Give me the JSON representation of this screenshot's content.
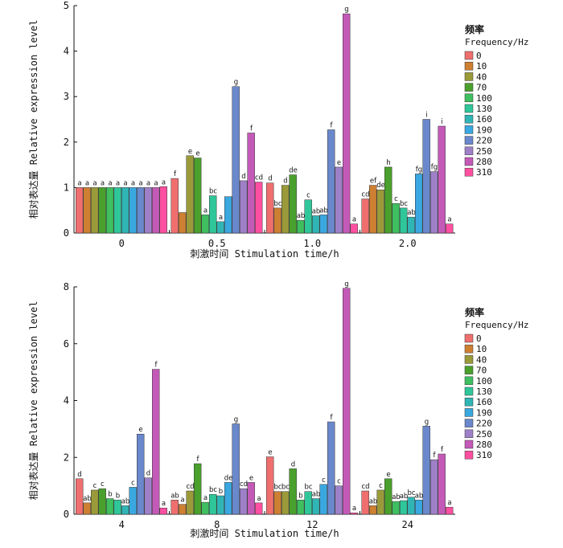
{
  "legend": {
    "title_zh": "频率",
    "title_en": "Frequency/Hz",
    "entries": [
      "0",
      "10",
      "40",
      "70",
      "100",
      "130",
      "160",
      "190",
      "220",
      "250",
      "280",
      "310"
    ],
    "colors": [
      "#ef6f6f",
      "#cd7f32",
      "#9a9a3a",
      "#4aa02c",
      "#3fbf5f",
      "#2fc79a",
      "#30b5b5",
      "#3aa8e0",
      "#6a88cc",
      "#9e80c8",
      "#c45ab8",
      "#ff4fa0"
    ]
  },
  "chart_data": [
    {
      "type": "bar",
      "title": "",
      "ylabel": "相对表达量 Relative expression level",
      "xlabel": "刺激时间 Stimulation time/h",
      "ylim": [
        0,
        5
      ],
      "yticks": [
        "0",
        "1",
        "2",
        "3",
        "4",
        "5"
      ],
      "categories": [
        "0",
        "0.5",
        "1.0",
        "2.0"
      ],
      "series": [
        {
          "name": "0",
          "values": [
            1.0,
            1.2,
            1.1,
            0.75
          ],
          "labels": [
            "a",
            "f",
            "d",
            "cd"
          ]
        },
        {
          "name": "10",
          "values": [
            1.0,
            0.45,
            0.55,
            1.05
          ],
          "labels": [
            "a",
            "",
            "bc",
            "ef"
          ]
        },
        {
          "name": "40",
          "values": [
            1.0,
            1.7,
            1.05,
            0.95
          ],
          "labels": [
            "a",
            "e",
            "d",
            "de"
          ]
        },
        {
          "name": "70",
          "values": [
            1.0,
            1.65,
            1.28,
            1.45
          ],
          "labels": [
            "a",
            "e",
            "de",
            "h"
          ]
        },
        {
          "name": "100",
          "values": [
            1.0,
            0.4,
            0.28,
            0.65
          ],
          "labels": [
            "a",
            "a",
            "ab",
            "c"
          ]
        },
        {
          "name": "130",
          "values": [
            1.0,
            0.82,
            0.73,
            0.55
          ],
          "labels": [
            "a",
            "bc",
            "c",
            "bc"
          ]
        },
        {
          "name": "160",
          "values": [
            1.0,
            0.25,
            0.38,
            0.35
          ],
          "labels": [
            "a",
            "a",
            "ab",
            "ab"
          ]
        },
        {
          "name": "190",
          "values": [
            1.0,
            0.8,
            0.4,
            1.3
          ],
          "labels": [
            "a",
            "",
            "ab",
            "fg"
          ]
        },
        {
          "name": "220",
          "values": [
            1.0,
            3.22,
            2.27,
            2.5
          ],
          "labels": [
            "a",
            "g",
            "f",
            "i"
          ]
        },
        {
          "name": "250",
          "values": [
            1.0,
            1.15,
            1.45,
            1.35
          ],
          "labels": [
            "a",
            "d",
            "e",
            "fg"
          ]
        },
        {
          "name": "280",
          "values": [
            1.0,
            2.2,
            4.82,
            2.35
          ],
          "labels": [
            "a",
            "f",
            "g",
            "i"
          ]
        },
        {
          "name": "310",
          "values": [
            1.02,
            1.12,
            0.2,
            0.2
          ],
          "labels": [
            "a",
            "cd",
            "a",
            "a"
          ]
        }
      ]
    },
    {
      "type": "bar",
      "title": "",
      "ylabel": "相对表达量 Relative expression level",
      "xlabel": "刺激时间 Stimulation time/h",
      "ylim": [
        0,
        8
      ],
      "yticks": [
        "0",
        "2",
        "4",
        "6",
        "8"
      ],
      "categories": [
        "4",
        "8",
        "12",
        "24"
      ],
      "series": [
        {
          "name": "0",
          "values": [
            1.25,
            0.5,
            2.02,
            0.82
          ],
          "labels": [
            "d",
            "ab",
            "e",
            "cd"
          ]
        },
        {
          "name": "10",
          "values": [
            0.4,
            0.35,
            0.8,
            0.3
          ],
          "labels": [
            "ab",
            "a",
            "bc",
            "ab"
          ]
        },
        {
          "name": "40",
          "values": [
            0.85,
            0.82,
            0.8,
            0.85
          ],
          "labels": [
            "c",
            "cd",
            "bc",
            "c"
          ]
        },
        {
          "name": "70",
          "values": [
            0.9,
            1.78,
            1.6,
            1.25
          ],
          "labels": [
            "c",
            "f",
            "d",
            "e"
          ]
        },
        {
          "name": "100",
          "values": [
            0.55,
            0.42,
            0.5,
            0.45
          ],
          "labels": [
            "b",
            "a",
            "b",
            "ab"
          ]
        },
        {
          "name": "130",
          "values": [
            0.5,
            0.7,
            0.8,
            0.48
          ],
          "labels": [
            "b",
            "bc",
            "bc",
            "ab"
          ]
        },
        {
          "name": "160",
          "values": [
            0.3,
            0.65,
            0.55,
            0.6
          ],
          "labels": [
            "ab",
            "b",
            "ab",
            "bc"
          ]
        },
        {
          "name": "190",
          "values": [
            0.95,
            1.12,
            1.05,
            0.5
          ],
          "labels": [
            "c",
            "de",
            "c",
            "ab"
          ]
        },
        {
          "name": "220",
          "values": [
            2.82,
            3.18,
            3.25,
            3.1
          ],
          "labels": [
            "e",
            "g",
            "f",
            "g"
          ]
        },
        {
          "name": "250",
          "values": [
            1.28,
            0.9,
            1.0,
            1.92
          ],
          "labels": [
            "d",
            "cd",
            "c",
            "f"
          ]
        },
        {
          "name": "280",
          "values": [
            5.1,
            1.12,
            7.95,
            2.12
          ],
          "labels": [
            "f",
            "e",
            "g",
            "f"
          ]
        },
        {
          "name": "310",
          "values": [
            0.22,
            0.4,
            0.05,
            0.25
          ],
          "labels": [
            "a",
            "a",
            "a",
            "a"
          ]
        }
      ]
    }
  ]
}
